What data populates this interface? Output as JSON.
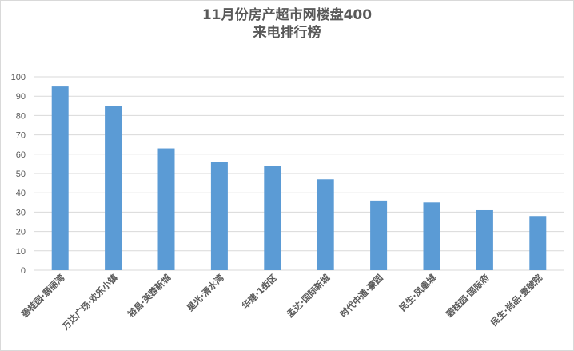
{
  "chart_data": {
    "type": "bar",
    "title": [
      "11月份房产超市网楼盘400",
      "来电排行榜"
    ],
    "categories": [
      "碧桂园·翡丽湾",
      "万达广场·欢乐小镇",
      "裕昌·芙蓉新城",
      "星光·清水湾",
      "华建·1街区",
      "孟达·国际新城",
      "时代中通·豪园",
      "民生·凤凰城",
      "碧桂园·国际府",
      "民生·尚品·壹號院"
    ],
    "values": [
      95,
      85,
      63,
      56,
      54,
      47,
      36,
      35,
      31,
      28
    ],
    "ylim": [
      0,
      100
    ],
    "yticks": [
      0,
      10,
      20,
      30,
      40,
      50,
      60,
      70,
      80,
      90,
      100
    ],
    "grid": true,
    "bar_color": "#5b9bd5",
    "grid_color": "#d9d9d9",
    "text_color": "#595959"
  }
}
